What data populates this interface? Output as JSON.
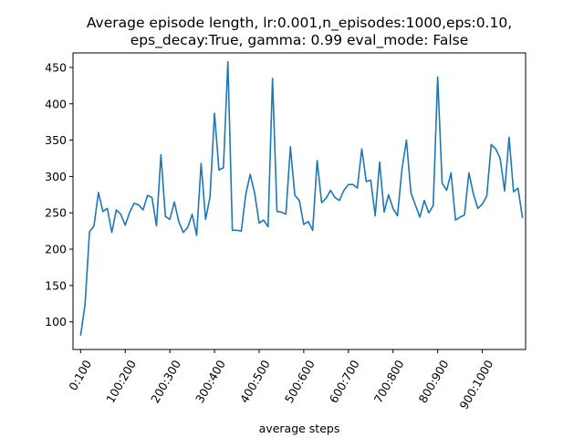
{
  "chart_data": {
    "type": "line",
    "title_line1": "Average episode length, lr:0.001,n_episodes:1000,eps:0.10,",
    "title_line2": "eps_decay:True, gamma: 0.99 eval_mode: False",
    "xlabel": "average steps",
    "ylabel": "",
    "ylim": [
      62,
      470
    ],
    "y_ticks": [
      100,
      150,
      200,
      250,
      300,
      350,
      400,
      450
    ],
    "x_tick_labels": [
      "0:100",
      "100:200",
      "200:300",
      "300:400",
      "400:500",
      "500:600",
      "600:700",
      "700:800",
      "800:900",
      "900:1000"
    ],
    "x_range": [
      -17,
      997
    ],
    "grid": false,
    "legend": "none",
    "line_color": "#1f77b4",
    "series": [
      {
        "x": [
          0,
          10,
          20,
          30,
          40,
          50,
          60,
          70,
          80,
          90,
          100,
          110,
          120,
          130,
          140,
          150,
          160,
          170,
          180,
          190,
          200,
          210,
          220,
          230,
          240,
          250,
          260,
          270,
          280,
          290,
          300,
          310,
          320,
          330,
          340,
          350,
          360,
          370,
          380,
          390,
          400,
          410,
          420,
          430,
          440,
          450,
          460,
          470,
          480,
          490,
          500,
          510,
          520,
          530,
          540,
          550,
          560,
          570,
          580,
          590,
          600,
          610,
          620,
          630,
          640,
          650,
          660,
          670,
          680,
          690,
          700,
          710,
          720,
          730,
          740,
          750,
          760,
          770,
          780,
          790,
          800,
          810,
          820,
          830,
          840,
          850,
          860,
          870,
          880,
          890,
          900,
          910,
          920,
          930,
          940,
          950,
          960,
          970,
          980,
          990
        ],
        "values": [
          81,
          124,
          224,
          232,
          278,
          252,
          256,
          223,
          254,
          248,
          233,
          251,
          263,
          261,
          254,
          274,
          271,
          232,
          330,
          245,
          241,
          265,
          238,
          223,
          230,
          248,
          219,
          318,
          241,
          272,
          387,
          309,
          312,
          458,
          226,
          226,
          225,
          275,
          303,
          277,
          236,
          240,
          231,
          435,
          252,
          251,
          248,
          341,
          274,
          267,
          234,
          238,
          226,
          322,
          264,
          270,
          281,
          271,
          267,
          281,
          289,
          289,
          284,
          338,
          293,
          295,
          246,
          320,
          251,
          275,
          256,
          246,
          310,
          350,
          278,
          261,
          244,
          267,
          250,
          260,
          437,
          291,
          281,
          305,
          240,
          244,
          247,
          305,
          276,
          256,
          262,
          273,
          344,
          338,
          325,
          280,
          354,
          279,
          284,
          243
        ]
      }
    ]
  }
}
